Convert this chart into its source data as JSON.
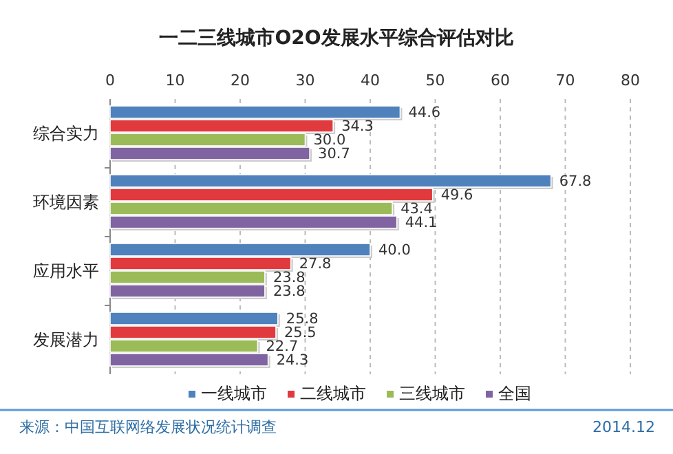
{
  "chart_data": {
    "type": "bar",
    "orientation": "horizontal",
    "title": "一二三线城市O2O发展水平综合评估对比",
    "categories": [
      "综合实力",
      "环境因素",
      "应用水平",
      "发展潜力"
    ],
    "series": [
      {
        "name": "一线城市",
        "color": "#4f81bd",
        "values": [
          44.6,
          67.8,
          40,
          25.8
        ],
        "value_labels": [
          "44.6",
          "67.8",
          "40.0",
          "25.8"
        ]
      },
      {
        "name": "二线城市",
        "color": "#e0393e",
        "values": [
          34.3,
          49.6,
          27.8,
          25.5
        ],
        "value_labels": [
          "34.3",
          "49.6",
          "27.8",
          "25.5"
        ]
      },
      {
        "name": "三线城市",
        "color": "#9bbb59",
        "values": [
          30,
          43.4,
          23.8,
          22.7
        ],
        "value_labels": [
          "30.0",
          "43.4",
          "23.8",
          "22.7"
        ]
      },
      {
        "name": "全国",
        "color": "#8064a2",
        "values": [
          30.7,
          44.1,
          23.8,
          24.3
        ],
        "value_labels": [
          "30.7",
          "44.1",
          "23.8",
          "24.3"
        ]
      }
    ],
    "xlim": [
      0,
      80
    ],
    "xticks": [
      0,
      10,
      20,
      30,
      40,
      50,
      60,
      70,
      80
    ],
    "grid": "x",
    "legend": "bottom",
    "annotations": [
      "来源：中国互联网络发展状况统计调查",
      "2014.12"
    ]
  }
}
